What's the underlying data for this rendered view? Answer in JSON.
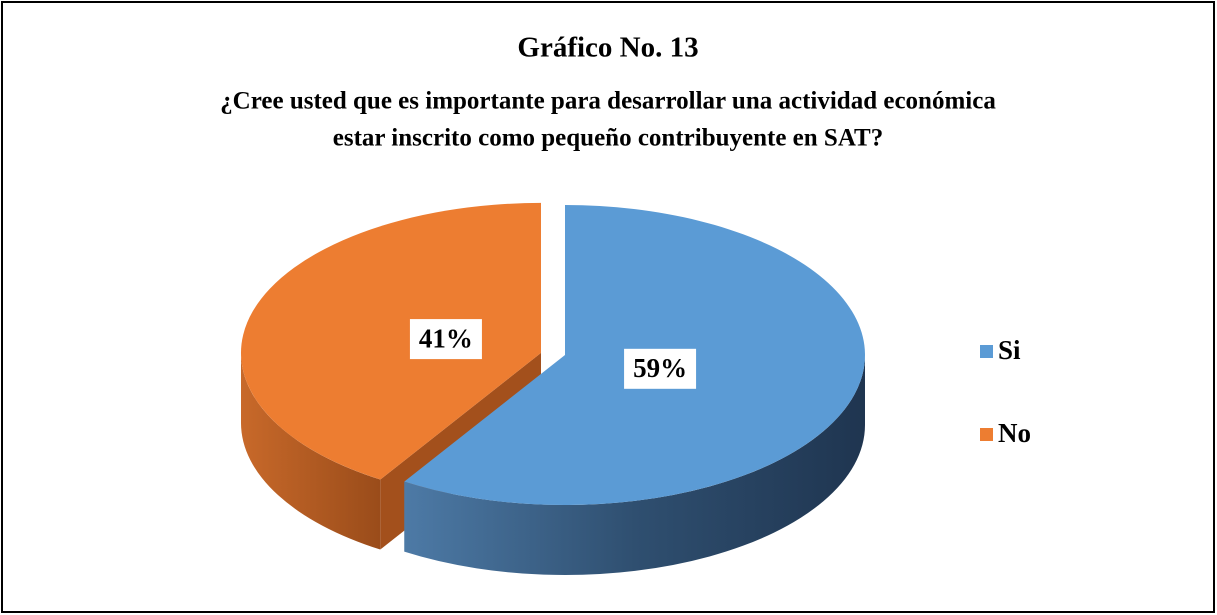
{
  "chart_data": {
    "type": "pie",
    "title": "Gráfico No. 13",
    "subtitle": [
      "¿Cree usted que es importante para desarrollar una actividad económica",
      "estar inscrito como pequeño contribuyente en SAT?"
    ],
    "categories": [
      "Si",
      "No"
    ],
    "values": [
      59,
      41
    ],
    "value_labels": [
      "59%",
      "41%"
    ],
    "colors": [
      "#5b9bd5",
      "#ed7d31"
    ],
    "legend": "right"
  }
}
